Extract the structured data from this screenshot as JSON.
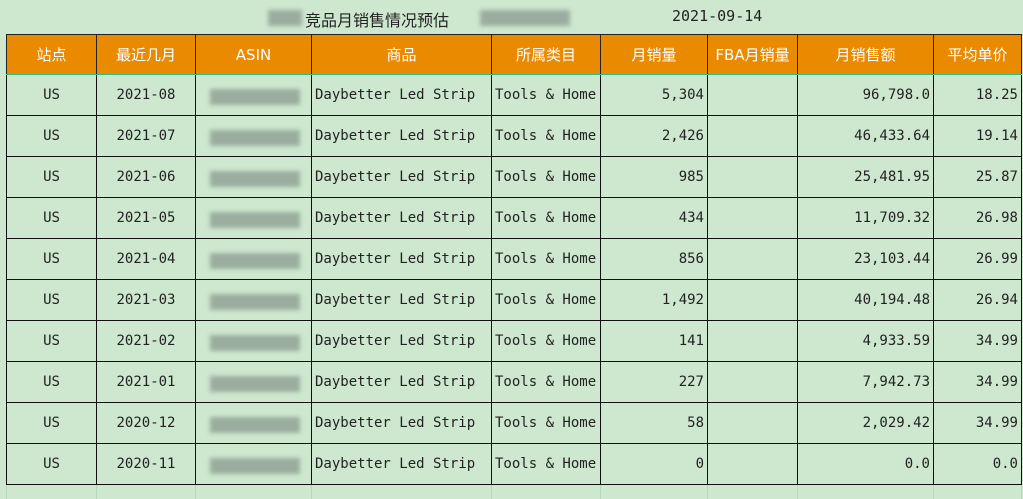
{
  "title": {
    "text": "竞品月销售情况预估",
    "date": "2021-09-14"
  },
  "headers": [
    "站点",
    "最近几月",
    "ASIN",
    "商品",
    "所属类目",
    "月销量",
    "FBA月销量",
    "月销售额",
    "平均单价"
  ],
  "rows": [
    {
      "site": "US",
      "month": "2021-08",
      "asin": "",
      "product": "Daybetter Led Strip",
      "category": "Tools & Home",
      "sales": "5,304",
      "fba": "",
      "revenue": "96,798.0",
      "price": "18.25"
    },
    {
      "site": "US",
      "month": "2021-07",
      "asin": "",
      "product": "Daybetter Led Strip",
      "category": "Tools & Home",
      "sales": "2,426",
      "fba": "",
      "revenue": "46,433.64",
      "price": "19.14"
    },
    {
      "site": "US",
      "month": "2021-06",
      "asin": "",
      "product": "Daybetter Led Strip",
      "category": "Tools & Home",
      "sales": "985",
      "fba": "",
      "revenue": "25,481.95",
      "price": "25.87"
    },
    {
      "site": "US",
      "month": "2021-05",
      "asin": "",
      "product": "Daybetter Led Strip",
      "category": "Tools & Home",
      "sales": "434",
      "fba": "",
      "revenue": "11,709.32",
      "price": "26.98"
    },
    {
      "site": "US",
      "month": "2021-04",
      "asin": "",
      "product": "Daybetter Led Strip",
      "category": "Tools & Home",
      "sales": "856",
      "fba": "",
      "revenue": "23,103.44",
      "price": "26.99"
    },
    {
      "site": "US",
      "month": "2021-03",
      "asin": "",
      "product": "Daybetter Led Strip",
      "category": "Tools & Home",
      "sales": "1,492",
      "fba": "",
      "revenue": "40,194.48",
      "price": "26.94"
    },
    {
      "site": "US",
      "month": "2021-02",
      "asin": "",
      "product": "Daybetter Led Strip",
      "category": "Tools & Home",
      "sales": "141",
      "fba": "",
      "revenue": "4,933.59",
      "price": "34.99"
    },
    {
      "site": "US",
      "month": "2021-01",
      "asin": "",
      "product": "Daybetter Led Strip",
      "category": "Tools & Home",
      "sales": "227",
      "fba": "",
      "revenue": "7,942.73",
      "price": "34.99"
    },
    {
      "site": "US",
      "month": "2020-12",
      "asin": "",
      "product": "Daybetter Led Strip",
      "category": "Tools & Home",
      "sales": "58",
      "fba": "",
      "revenue": "2,029.42",
      "price": "34.99"
    },
    {
      "site": "US",
      "month": "2020-11",
      "asin": "",
      "product": "Daybetter Led Strip",
      "category": "Tools & Home",
      "sales": "0",
      "fba": "",
      "revenue": "0.0",
      "price": "0.0"
    }
  ],
  "colors": {
    "header_bg": "#ea8a00",
    "cell_bg": "#cde8cf",
    "header_text": "#ffffff"
  }
}
